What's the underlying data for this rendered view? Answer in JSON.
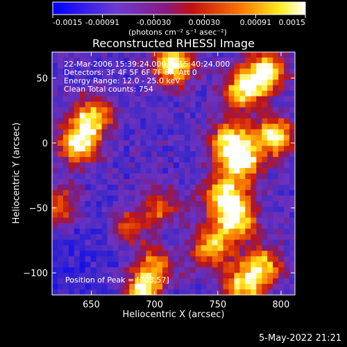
{
  "chart_data": {
    "type": "heatmap",
    "title": "Reconstructed RHESSI Image",
    "xlabel": "Heliocentric X (arcsec)",
    "ylabel": "Heliocentric Y (arcsec)",
    "xlim": [
      619,
      811
    ],
    "ylim": [
      -117,
      70
    ],
    "x_ticks": [
      650,
      700,
      750,
      800
    ],
    "y_ticks": [
      50,
      0,
      -50,
      -100
    ],
    "colorbar": {
      "ticks": [
        "-0.0015",
        "-0.00091",
        "-0.00030",
        "0.00030",
        "0.00091",
        "0.0015"
      ],
      "unit": "(photons cm⁻² s⁻¹ asec⁻²)",
      "range": [
        -0.0015,
        0.0015
      ],
      "colors": [
        "#0000ff",
        "#7a32c0",
        "#b01818",
        "#ff8000",
        "#ffff00",
        "#ffffff"
      ]
    },
    "annotations": [
      "22-Mar-2006 15:39:24.000 to 15:40:24.000",
      "Detectors: 3F 4F 5F 6F 7F 8F, Att 0",
      "Energy Range: 12.0 - 25.0 keV",
      "Clean     Total counts: 754"
    ],
    "peak_label": "Position of Peak = [703,57]",
    "hot_regions": [
      {
        "x": 787,
        "y": 55,
        "level": 0.95
      },
      {
        "x": 770,
        "y": 40,
        "level": 0.85
      },
      {
        "x": 760,
        "y": 0,
        "level": 0.95
      },
      {
        "x": 795,
        "y": 5,
        "level": 0.9
      },
      {
        "x": 770,
        "y": -15,
        "level": 0.8
      },
      {
        "x": 755,
        "y": -40,
        "level": 0.95
      },
      {
        "x": 765,
        "y": -60,
        "level": 0.85
      },
      {
        "x": 745,
        "y": -80,
        "level": 0.8
      },
      {
        "x": 785,
        "y": -95,
        "level": 0.75
      },
      {
        "x": 770,
        "y": -110,
        "level": 0.8
      },
      {
        "x": 715,
        "y": 60,
        "level": 1.0
      },
      {
        "x": 640,
        "y": 0,
        "level": 0.95
      },
      {
        "x": 650,
        "y": 20,
        "level": 0.8
      },
      {
        "x": 690,
        "y": -115,
        "level": 0.95
      },
      {
        "x": 700,
        "y": -95,
        "level": 0.7
      },
      {
        "x": 625,
        "y": -50,
        "level": 0.6
      },
      {
        "x": 680,
        "y": -65,
        "level": 0.55
      },
      {
        "x": 705,
        "y": -50,
        "level": 0.6
      }
    ]
  },
  "footer": {
    "timestamp": "5-May-2022 21:21"
  }
}
